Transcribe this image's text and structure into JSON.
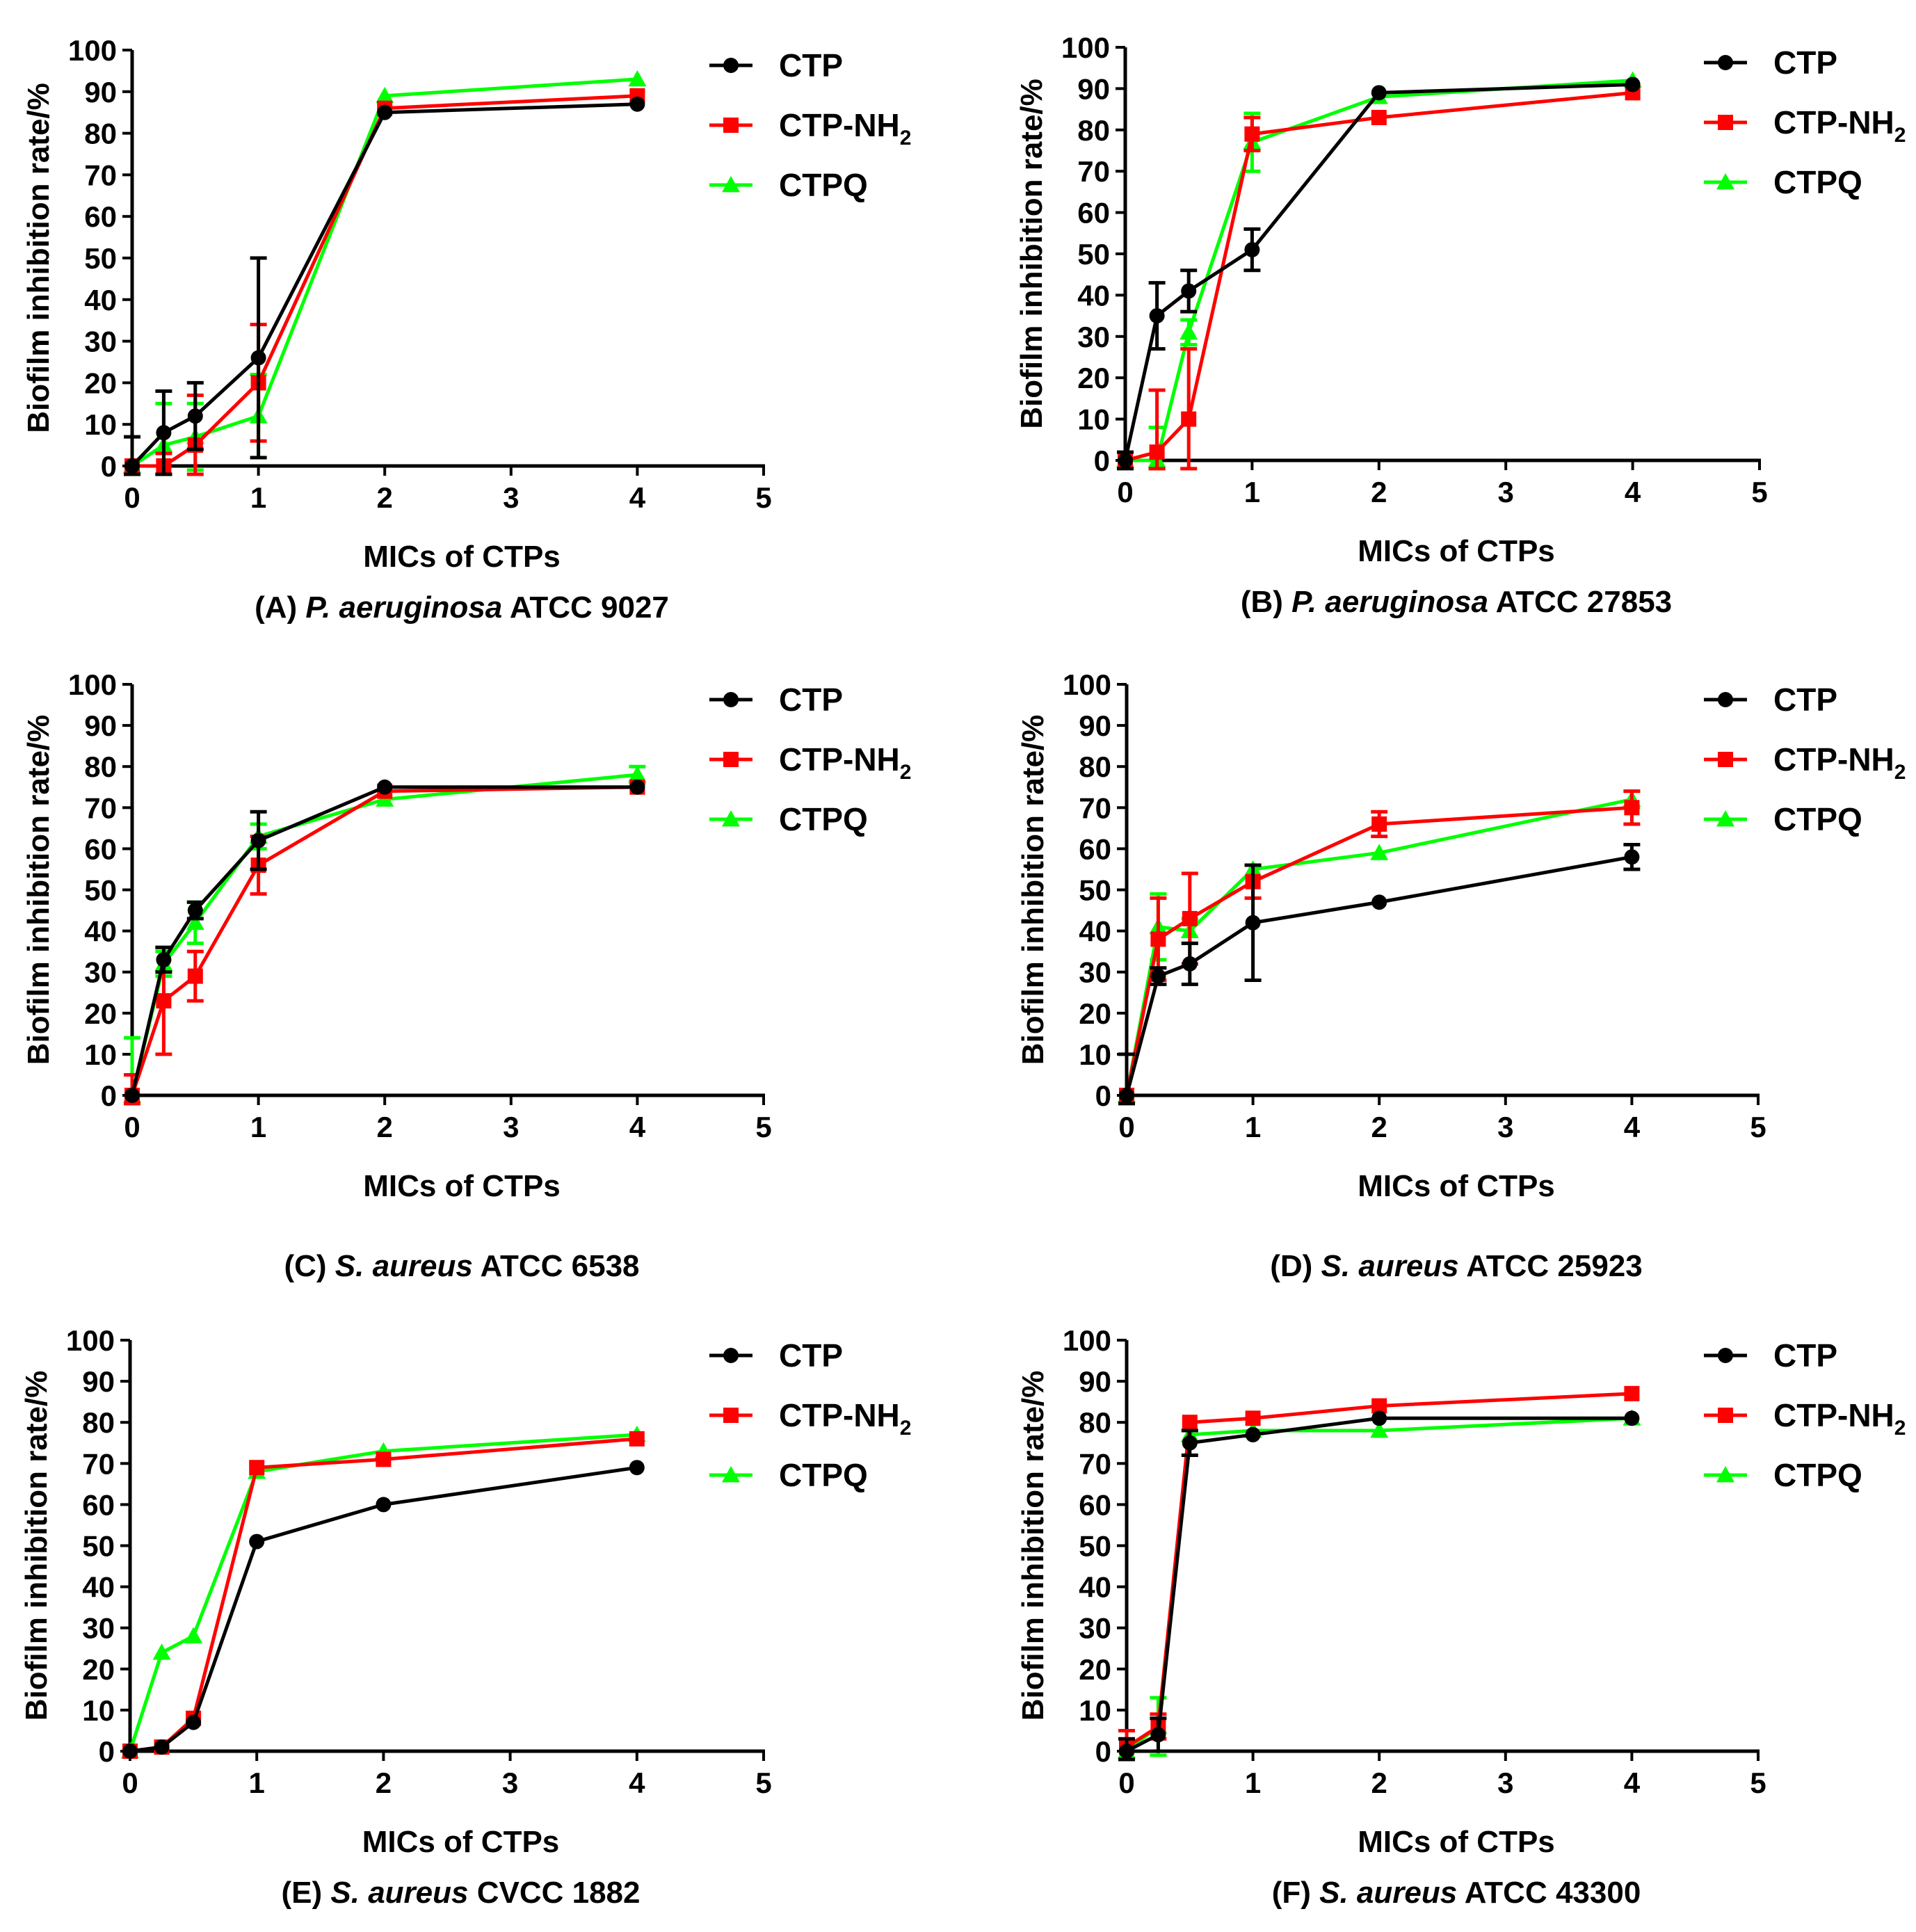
{
  "colors": {
    "CTP": "#000000",
    "CTP-NH2": "#ff0000",
    "CTPQ": "#00ff00",
    "axis": "#000000"
  },
  "chart_data": [
    {
      "type": "line",
      "panel": "A",
      "caption_prefix": "(A) ",
      "caption_italic": "P. aeruginosa",
      "caption_suffix": " ATCC 9027",
      "xlabel": "MICs of CTPs",
      "ylabel": "Biofilm inhibition rate/%",
      "xlim": [
        0,
        5
      ],
      "ylim": [
        0,
        100
      ],
      "xticks": [
        "0",
        "1",
        "2",
        "3",
        "4",
        "5"
      ],
      "yticks": [
        "0",
        "10",
        "20",
        "30",
        "40",
        "50",
        "60",
        "70",
        "80",
        "90",
        "100"
      ],
      "grid": false,
      "legend_position": "right",
      "series": [
        {
          "name": "CTP",
          "legend_label": "CTP",
          "legend_sub": "",
          "marker": "circle",
          "x": [
            0,
            0.25,
            0.5,
            1,
            2,
            4
          ],
          "y": [
            0,
            8,
            12,
            26,
            85,
            87
          ],
          "err": [
            7,
            10,
            8,
            24,
            0,
            0
          ]
        },
        {
          "name": "CTP-NH2",
          "legend_label": "CTP-NH",
          "legend_sub": "2",
          "marker": "square",
          "x": [
            0,
            0.25,
            0.5,
            1,
            2,
            4
          ],
          "y": [
            0,
            0,
            5,
            20,
            86,
            89
          ],
          "err": [
            0,
            3,
            12,
            14,
            0,
            0
          ]
        },
        {
          "name": "CTPQ",
          "legend_label": "CTPQ",
          "legend_sub": "",
          "marker": "triangle",
          "x": [
            0,
            0.25,
            0.5,
            1,
            2,
            4
          ],
          "y": [
            0,
            5,
            7,
            12,
            89,
            93
          ],
          "err": [
            0,
            10,
            8,
            10,
            0,
            0
          ]
        }
      ]
    },
    {
      "type": "line",
      "panel": "B",
      "caption_prefix": "(B) ",
      "caption_italic": "P. aeruginosa",
      "caption_suffix": " ATCC 27853",
      "xlabel": "MICs of CTPs",
      "ylabel": "Biofilm inhibition rate/%",
      "xlim": [
        0,
        5
      ],
      "ylim": [
        0,
        100
      ],
      "xticks": [
        "0",
        "1",
        "2",
        "3",
        "4",
        "5"
      ],
      "yticks": [
        "0",
        "10",
        "20",
        "30",
        "40",
        "50",
        "60",
        "70",
        "80",
        "90",
        "100"
      ],
      "grid": false,
      "legend_position": "right",
      "series": [
        {
          "name": "CTP",
          "legend_label": "CTP",
          "legend_sub": "",
          "marker": "circle",
          "x": [
            0,
            0.25,
            0.5,
            1,
            2,
            4
          ],
          "y": [
            0,
            35,
            41,
            51,
            89,
            91
          ],
          "err": [
            2,
            8,
            5,
            5,
            0,
            0
          ]
        },
        {
          "name": "CTP-NH2",
          "legend_label": "CTP-NH",
          "legend_sub": "2",
          "marker": "square",
          "x": [
            0,
            0.25,
            0.5,
            1,
            2,
            4
          ],
          "y": [
            0,
            2,
            10,
            79,
            83,
            89
          ],
          "err": [
            0,
            15,
            17,
            4,
            0,
            0
          ]
        },
        {
          "name": "CTPQ",
          "legend_label": "CTPQ",
          "legend_sub": "",
          "marker": "triangle",
          "x": [
            0,
            0.25,
            0.5,
            1,
            2,
            4
          ],
          "y": [
            0,
            0,
            31,
            77,
            88,
            92
          ],
          "err": [
            0,
            8,
            3,
            7,
            0,
            0
          ]
        }
      ]
    },
    {
      "type": "line",
      "panel": "C",
      "caption_prefix": "(C) ",
      "caption_italic": "S. aureus",
      "caption_suffix": "  ATCC 6538",
      "xlabel": "MICs of CTPs",
      "ylabel": "Biofilm inhibition rate/%",
      "xlim": [
        0,
        5
      ],
      "ylim": [
        0,
        100
      ],
      "xticks": [
        "0",
        "1",
        "2",
        "3",
        "4",
        "5"
      ],
      "yticks": [
        "0",
        "10",
        "20",
        "30",
        "40",
        "50",
        "60",
        "70",
        "80",
        "90",
        "100"
      ],
      "grid": false,
      "legend_position": "right",
      "series": [
        {
          "name": "CTP",
          "legend_label": "CTP",
          "legend_sub": "",
          "marker": "circle",
          "x": [
            0,
            0.25,
            0.5,
            1,
            2,
            4
          ],
          "y": [
            0,
            33,
            45,
            62,
            75,
            75
          ],
          "err": [
            0,
            3,
            2,
            7,
            0,
            0
          ]
        },
        {
          "name": "CTP-NH2",
          "legend_label": "CTP-NH",
          "legend_sub": "2",
          "marker": "square",
          "x": [
            0,
            0.25,
            0.5,
            1,
            2,
            4
          ],
          "y": [
            0,
            23,
            29,
            56,
            74,
            75
          ],
          "err": [
            5,
            13,
            6,
            7,
            0,
            0
          ]
        },
        {
          "name": "CTPQ",
          "legend_label": "CTPQ",
          "legend_sub": "",
          "marker": "triangle",
          "x": [
            0,
            0.25,
            0.5,
            1,
            2,
            4
          ],
          "y": [
            0,
            32,
            42,
            63,
            72,
            78
          ],
          "err": [
            14,
            3,
            5,
            3,
            0,
            2
          ]
        }
      ]
    },
    {
      "type": "line",
      "panel": "D",
      "caption_prefix": "(D) ",
      "caption_italic": "S. aureus",
      "caption_suffix": "  ATCC 25923",
      "xlabel": "MICs of CTPs",
      "ylabel": "Biofilm inhibition rate/%",
      "xlim": [
        0,
        5
      ],
      "ylim": [
        0,
        100
      ],
      "xticks": [
        "0",
        "1",
        "2",
        "3",
        "4",
        "5"
      ],
      "yticks": [
        "0",
        "10",
        "20",
        "30",
        "40",
        "50",
        "60",
        "70",
        "80",
        "90",
        "100"
      ],
      "grid": false,
      "legend_position": "right",
      "series": [
        {
          "name": "CTP",
          "legend_label": "CTP",
          "legend_sub": "",
          "marker": "circle",
          "x": [
            0,
            0.25,
            0.5,
            1,
            2,
            4
          ],
          "y": [
            0,
            29,
            32,
            42,
            47,
            58
          ],
          "err": [
            10,
            2,
            5,
            14,
            0,
            3
          ]
        },
        {
          "name": "CTP-NH2",
          "legend_label": "CTP-NH",
          "legend_sub": "2",
          "marker": "square",
          "x": [
            0,
            0.25,
            0.5,
            1,
            2,
            4
          ],
          "y": [
            0,
            38,
            43,
            52,
            66,
            70
          ],
          "err": [
            0,
            10,
            11,
            4,
            3,
            4
          ]
        },
        {
          "name": "CTPQ",
          "legend_label": "CTPQ",
          "legend_sub": "",
          "marker": "triangle",
          "x": [
            0,
            0.25,
            0.5,
            1,
            2,
            4
          ],
          "y": [
            0,
            41,
            40,
            55,
            59,
            72
          ],
          "err": [
            0,
            8,
            3,
            0,
            0,
            2
          ]
        }
      ]
    },
    {
      "type": "line",
      "panel": "E",
      "caption_prefix": "(E) ",
      "caption_italic": "S. aureus",
      "caption_suffix": "  CVCC 1882",
      "xlabel": "MICs of CTPs",
      "ylabel": "Biofilm inhibition rate/%",
      "xlim": [
        0,
        5
      ],
      "ylim": [
        0,
        100
      ],
      "xticks": [
        "0",
        "1",
        "2",
        "3",
        "4",
        "5"
      ],
      "yticks": [
        "0",
        "10",
        "20",
        "30",
        "40",
        "50",
        "60",
        "70",
        "80",
        "90",
        "100"
      ],
      "grid": false,
      "legend_position": "right",
      "series": [
        {
          "name": "CTP",
          "legend_label": "CTP",
          "legend_sub": "",
          "marker": "circle",
          "x": [
            0,
            0.25,
            0.5,
            1,
            2,
            4
          ],
          "y": [
            0,
            1,
            7,
            51,
            60,
            69
          ],
          "err": [
            0,
            0,
            0,
            0,
            0,
            0
          ]
        },
        {
          "name": "CTP-NH2",
          "legend_label": "CTP-NH",
          "legend_sub": "2",
          "marker": "square",
          "x": [
            0,
            0.25,
            0.5,
            1,
            2,
            4
          ],
          "y": [
            0,
            1,
            8,
            69,
            71,
            76
          ],
          "err": [
            0,
            0,
            0,
            0,
            0,
            0
          ]
        },
        {
          "name": "CTPQ",
          "legend_label": "CTPQ",
          "legend_sub": "",
          "marker": "triangle",
          "x": [
            0,
            0.25,
            0.5,
            1,
            2,
            4
          ],
          "y": [
            0,
            24,
            28,
            68,
            73,
            77
          ],
          "err": [
            0,
            0,
            0,
            0,
            0,
            0
          ]
        }
      ]
    },
    {
      "type": "line",
      "panel": "F",
      "caption_prefix": "(F) ",
      "caption_italic": "S. aureus",
      "caption_suffix": "  ATCC 43300",
      "xlabel": "MICs of CTPs",
      "ylabel": "Biofilm inhibition rate/%",
      "xlim": [
        0,
        5
      ],
      "ylim": [
        0,
        100
      ],
      "xticks": [
        "0",
        "1",
        "2",
        "3",
        "4",
        "5"
      ],
      "yticks": [
        "0",
        "10",
        "20",
        "30",
        "40",
        "50",
        "60",
        "70",
        "80",
        "90",
        "100"
      ],
      "grid": false,
      "legend_position": "right",
      "series": [
        {
          "name": "CTP",
          "legend_label": "CTP",
          "legend_sub": "",
          "marker": "circle",
          "x": [
            0,
            0.25,
            0.5,
            1,
            2,
            4
          ],
          "y": [
            0,
            4,
            75,
            77,
            81,
            81
          ],
          "err": [
            3,
            4,
            3,
            0,
            0,
            0
          ]
        },
        {
          "name": "CTP-NH2",
          "legend_label": "CTP-NH",
          "legend_sub": "2",
          "marker": "square",
          "x": [
            0,
            0.25,
            0.5,
            1,
            2,
            4
          ],
          "y": [
            1,
            6,
            80,
            81,
            84,
            87
          ],
          "err": [
            4,
            3,
            0,
            0,
            0,
            0
          ]
        },
        {
          "name": "CTPQ",
          "legend_label": "CTPQ",
          "legend_sub": "",
          "marker": "triangle",
          "x": [
            0,
            0.25,
            0.5,
            1,
            2,
            4
          ],
          "y": [
            0,
            6,
            77,
            78,
            78,
            81
          ],
          "err": [
            0,
            7,
            0,
            0,
            0,
            0
          ]
        }
      ]
    }
  ]
}
